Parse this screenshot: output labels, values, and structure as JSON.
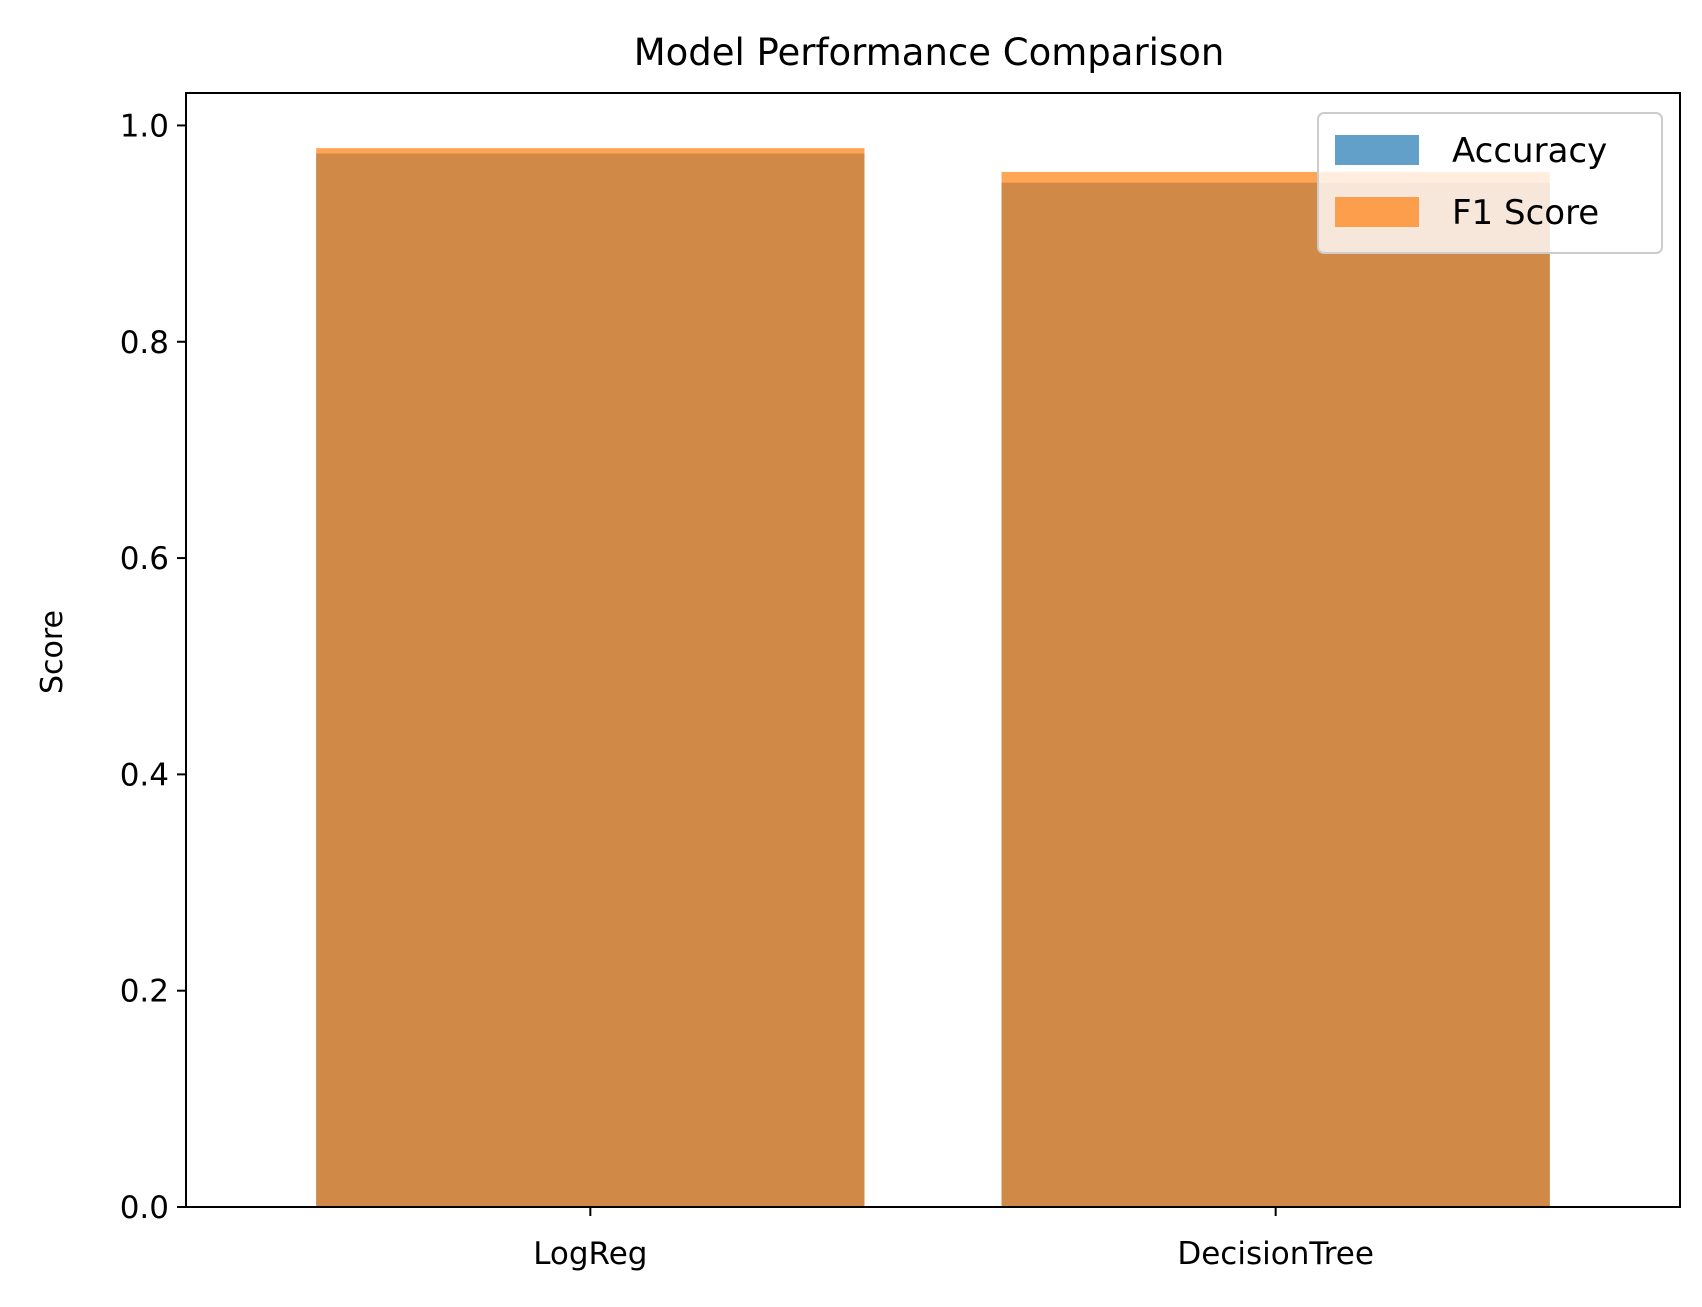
{
  "chart_data": {
    "type": "bar",
    "title": "Model Performance Comparison",
    "xlabel": "",
    "ylabel": "Score",
    "categories": [
      "LogReg",
      "DecisionTree"
    ],
    "series": [
      {
        "name": "Accuracy",
        "values": [
          0.974,
          0.947
        ],
        "color": "#1f77b4"
      },
      {
        "name": "F1 Score",
        "values": [
          0.979,
          0.957
        ],
        "color": "#ff7f0e"
      }
    ],
    "bar_alpha": 0.7,
    "ylim": [
      0,
      1.03
    ],
    "yticks": [
      "0.0",
      "0.2",
      "0.4",
      "0.6",
      "0.8",
      "1.0"
    ],
    "legend_position": "top-right",
    "grid": false
  }
}
